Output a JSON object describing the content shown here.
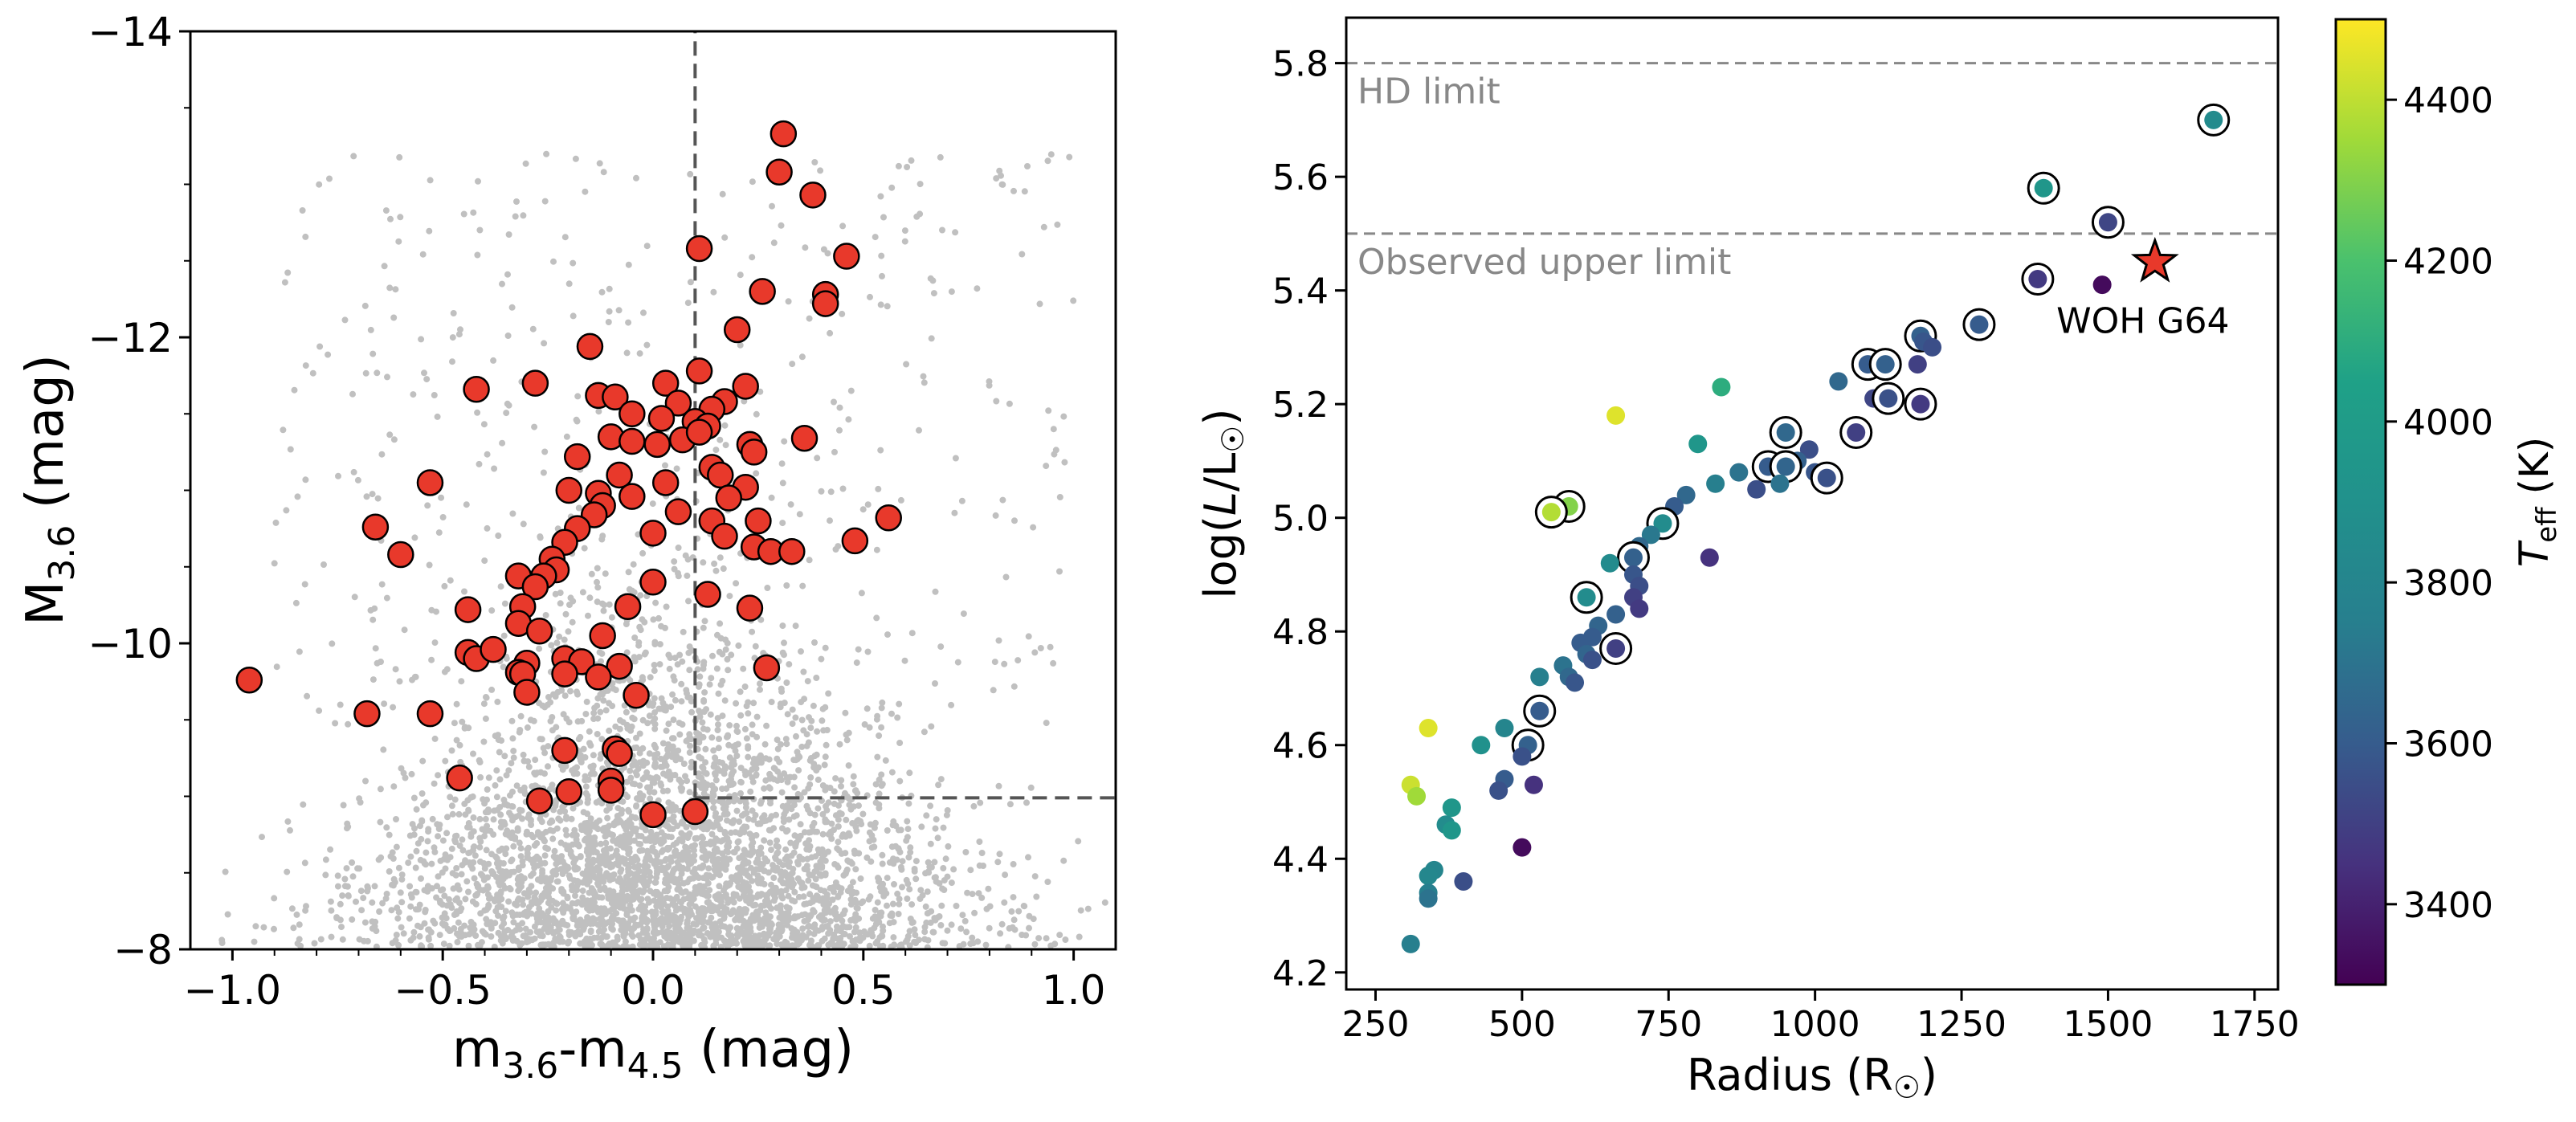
{
  "chart_data": [
    {
      "type": "scatter",
      "xlabel_main": "m",
      "xlabel_sub1": "3.6",
      "xlabel_mid": "-m",
      "xlabel_sub2": "4.5",
      "xlabel_tail": " (mag)",
      "ylabel_main": "M",
      "ylabel_sub": "3.6",
      "ylabel_tail": " (mag)",
      "xlim": [
        -1.1,
        1.1
      ],
      "ylim": [
        -8,
        -14
      ],
      "y_inverted": true,
      "xticks": [
        -1.0,
        -0.5,
        0.0,
        0.5,
        1.0
      ],
      "xtick_labels": [
        "−1.0",
        "−0.5",
        "0.0",
        "0.5",
        "1.0"
      ],
      "yticks": [
        -14,
        -12,
        -10,
        -8
      ],
      "ytick_labels": [
        "−14",
        "−12",
        "−10",
        "−8"
      ],
      "background_color": "#c0c0c0",
      "highlight_color": "#e8392b",
      "cut_lines": [
        {
          "style": "dashed",
          "x": [
            0.1,
            0.1
          ],
          "y": [
            -8.99,
            -14
          ]
        },
        {
          "style": "dashed",
          "x": [
            0.1,
            1.1
          ],
          "y": [
            -8.99,
            -8.99
          ]
        }
      ],
      "series": [
        {
          "role": "red-sources",
          "points": [
            [
              0.31,
              -13.33
            ],
            [
              0.3,
              -13.08
            ],
            [
              0.38,
              -12.93
            ],
            [
              0.11,
              -12.58
            ],
            [
              0.46,
              -12.53
            ],
            [
              0.26,
              -12.3
            ],
            [
              0.41,
              -12.28
            ],
            [
              0.41,
              -12.22
            ],
            [
              0.2,
              -12.05
            ],
            [
              -0.15,
              -11.94
            ],
            [
              0.11,
              -11.78
            ],
            [
              -0.28,
              -11.7
            ],
            [
              0.03,
              -11.7
            ],
            [
              -0.42,
              -11.66
            ],
            [
              0.22,
              -11.68
            ],
            [
              -0.13,
              -11.62
            ],
            [
              -0.09,
              -11.61
            ],
            [
              0.17,
              -11.58
            ],
            [
              0.06,
              -11.57
            ],
            [
              0.14,
              -11.53
            ],
            [
              -0.05,
              -11.5
            ],
            [
              0.02,
              -11.47
            ],
            [
              0.1,
              -11.45
            ],
            [
              0.13,
              -11.42
            ],
            [
              -0.1,
              -11.35
            ],
            [
              -0.05,
              -11.32
            ],
            [
              0.01,
              -11.3
            ],
            [
              0.07,
              -11.33
            ],
            [
              0.11,
              -11.38
            ],
            [
              0.23,
              -11.3
            ],
            [
              0.36,
              -11.34
            ],
            [
              -0.18,
              -11.22
            ],
            [
              0.24,
              -11.25
            ],
            [
              0.14,
              -11.15
            ],
            [
              0.16,
              -11.1
            ],
            [
              -0.08,
              -11.1
            ],
            [
              0.03,
              -11.05
            ],
            [
              -0.2,
              -11.0
            ],
            [
              -0.13,
              -10.98
            ],
            [
              0.22,
              -11.02
            ],
            [
              -0.05,
              -10.96
            ],
            [
              -0.12,
              -10.9
            ],
            [
              -0.53,
              -11.05
            ],
            [
              0.18,
              -10.95
            ],
            [
              -0.14,
              -10.84
            ],
            [
              0.06,
              -10.86
            ],
            [
              0.25,
              -10.8
            ],
            [
              -0.18,
              -10.75
            ],
            [
              0.0,
              -10.72
            ],
            [
              0.14,
              -10.8
            ],
            [
              0.17,
              -10.7
            ],
            [
              -0.21,
              -10.66
            ],
            [
              -0.66,
              -10.76
            ],
            [
              0.24,
              -10.63
            ],
            [
              0.28,
              -10.6
            ],
            [
              0.33,
              -10.6
            ],
            [
              0.48,
              -10.67
            ],
            [
              0.56,
              -10.82
            ],
            [
              -0.6,
              -10.58
            ],
            [
              -0.24,
              -10.55
            ],
            [
              -0.23,
              -10.48
            ],
            [
              -0.26,
              -10.44
            ],
            [
              -0.32,
              -10.44
            ],
            [
              0.0,
              -10.4
            ],
            [
              -0.28,
              -10.37
            ],
            [
              -0.06,
              -10.24
            ],
            [
              0.13,
              -10.32
            ],
            [
              0.23,
              -10.23
            ],
            [
              -0.31,
              -10.24
            ],
            [
              -0.32,
              -10.13
            ],
            [
              -0.27,
              -10.08
            ],
            [
              -0.12,
              -10.05
            ],
            [
              -0.44,
              -10.22
            ],
            [
              -0.44,
              -9.94
            ],
            [
              -0.42,
              -9.9
            ],
            [
              -0.38,
              -9.96
            ],
            [
              -0.3,
              -9.87
            ],
            [
              -0.21,
              -9.9
            ],
            [
              -0.17,
              -9.88
            ],
            [
              -0.32,
              -9.81
            ],
            [
              -0.21,
              -9.8
            ],
            [
              -0.31,
              -9.8
            ],
            [
              -0.08,
              -9.85
            ],
            [
              0.27,
              -9.84
            ],
            [
              -0.13,
              -9.78
            ],
            [
              -0.3,
              -9.68
            ],
            [
              -0.04,
              -9.66
            ],
            [
              -0.96,
              -9.76
            ],
            [
              -0.68,
              -9.54
            ],
            [
              -0.53,
              -9.54
            ],
            [
              -0.21,
              -9.3
            ],
            [
              -0.09,
              -9.31
            ],
            [
              -0.08,
              -9.28
            ],
            [
              -0.46,
              -9.12
            ],
            [
              -0.1,
              -9.1
            ],
            [
              -0.1,
              -9.04
            ],
            [
              -0.2,
              -9.03
            ],
            [
              -0.27,
              -8.97
            ],
            [
              0.0,
              -8.88
            ],
            [
              0.1,
              -8.9
            ]
          ]
        }
      ]
    },
    {
      "type": "scatter",
      "xlabel": "Radius (R",
      "xlabel_sym": "☉",
      "xlabel_close": ")",
      "ylabel_main": "log(",
      "ylabel_L": "L",
      "ylabel_slash": "/L",
      "ylabel_sub": "☉",
      "ylabel_close": ")",
      "xlim": [
        200,
        1790
      ],
      "ylim": [
        4.17,
        5.88
      ],
      "xticks": [
        250,
        500,
        750,
        1000,
        1250,
        1500,
        1750
      ],
      "xtick_labels": [
        "250",
        "500",
        "750",
        "1000",
        "1250",
        "1500",
        "1750"
      ],
      "yticks": [
        4.2,
        4.4,
        4.6,
        4.8,
        5.0,
        5.2,
        5.4,
        5.6,
        5.8
      ],
      "ytick_labels": [
        "4.2",
        "4.4",
        "4.6",
        "4.8",
        "5.0",
        "5.2",
        "5.4",
        "5.6",
        "5.8"
      ],
      "reference_lines": [
        {
          "y": 5.8,
          "label": "HD limit"
        },
        {
          "y": 5.5,
          "label": "Observed upper limit"
        }
      ],
      "annotation": {
        "text": "WOH G64",
        "radius": 1580,
        "logL": 5.45,
        "marker": "star",
        "color": "#e8392b"
      },
      "colorbar": {
        "label_main": "T",
        "label_sub": "eff",
        "label_tail": " (K)",
        "range": [
          3300,
          4500
        ],
        "ticks": [
          3400,
          3600,
          3800,
          4000,
          4200,
          4400
        ],
        "tick_labels": [
          "3400",
          "3600",
          "3800",
          "4000",
          "4200",
          "4400"
        ],
        "colormap": "viridis"
      },
      "columns": [
        "radius",
        "logL",
        "teff",
        "circled"
      ],
      "points": [
        [
          1680,
          5.7,
          3850,
          1
        ],
        [
          1390,
          5.58,
          3950,
          1
        ],
        [
          1500,
          5.52,
          3520,
          1
        ],
        [
          1380,
          5.42,
          3480,
          1
        ],
        [
          1490,
          5.41,
          3330,
          0
        ],
        [
          1180,
          5.32,
          3620,
          1
        ],
        [
          1185,
          5.31,
          3580,
          0
        ],
        [
          1175,
          5.27,
          3500,
          0
        ],
        [
          1200,
          5.3,
          3550,
          0
        ],
        [
          1280,
          5.34,
          3600,
          1
        ],
        [
          1090,
          5.27,
          3600,
          1
        ],
        [
          1120,
          5.27,
          3620,
          1
        ],
        [
          1040,
          5.24,
          3650,
          0
        ],
        [
          1100,
          5.21,
          3520,
          0
        ],
        [
          1125,
          5.21,
          3560,
          1
        ],
        [
          1180,
          5.2,
          3480,
          1
        ],
        [
          840,
          5.23,
          4100,
          0
        ],
        [
          660,
          5.18,
          4450,
          0
        ],
        [
          950,
          5.15,
          3650,
          1
        ],
        [
          1070,
          5.15,
          3500,
          1
        ],
        [
          800,
          5.13,
          3950,
          0
        ],
        [
          990,
          5.12,
          3550,
          0
        ],
        [
          970,
          5.1,
          3620,
          0
        ],
        [
          920,
          5.09,
          3600,
          1
        ],
        [
          950,
          5.09,
          3640,
          1
        ],
        [
          1000,
          5.08,
          3580,
          0
        ],
        [
          1020,
          5.07,
          3560,
          1
        ],
        [
          940,
          5.06,
          3700,
          0
        ],
        [
          830,
          5.06,
          3750,
          0
        ],
        [
          870,
          5.08,
          3700,
          0
        ],
        [
          900,
          5.05,
          3550,
          0
        ],
        [
          780,
          5.04,
          3650,
          0
        ],
        [
          760,
          5.02,
          3600,
          0
        ],
        [
          580,
          5.02,
          4300,
          1
        ],
        [
          550,
          5.01,
          4380,
          1
        ],
        [
          740,
          4.99,
          3860,
          1
        ],
        [
          720,
          4.97,
          3720,
          0
        ],
        [
          700,
          4.95,
          3650,
          0
        ],
        [
          690,
          4.93,
          3620,
          1
        ],
        [
          820,
          4.93,
          3450,
          0
        ],
        [
          650,
          4.92,
          3850,
          0
        ],
        [
          690,
          4.9,
          3580,
          0
        ],
        [
          700,
          4.88,
          3550,
          0
        ],
        [
          690,
          4.86,
          3500,
          0
        ],
        [
          610,
          4.86,
          3860,
          1
        ],
        [
          700,
          4.84,
          3480,
          0
        ],
        [
          660,
          4.83,
          3620,
          0
        ],
        [
          630,
          4.81,
          3640,
          0
        ],
        [
          620,
          4.79,
          3600,
          0
        ],
        [
          600,
          4.78,
          3600,
          0
        ],
        [
          610,
          4.76,
          3640,
          0
        ],
        [
          660,
          4.77,
          3500,
          1
        ],
        [
          620,
          4.75,
          3560,
          0
        ],
        [
          570,
          4.74,
          3700,
          0
        ],
        [
          580,
          4.72,
          3650,
          0
        ],
        [
          530,
          4.72,
          3760,
          0
        ],
        [
          590,
          4.71,
          3580,
          0
        ],
        [
          530,
          4.66,
          3600,
          1
        ],
        [
          470,
          4.63,
          3800,
          0
        ],
        [
          510,
          4.61,
          3640,
          0
        ],
        [
          430,
          4.6,
          3900,
          0
        ],
        [
          510,
          4.6,
          3620,
          1
        ],
        [
          500,
          4.58,
          3560,
          0
        ],
        [
          470,
          4.54,
          3600,
          0
        ],
        [
          460,
          4.52,
          3560,
          0
        ],
        [
          520,
          4.53,
          3450,
          0
        ],
        [
          340,
          4.63,
          4450,
          0
        ],
        [
          310,
          4.53,
          4420,
          0
        ],
        [
          320,
          4.51,
          4350,
          0
        ],
        [
          380,
          4.49,
          3950,
          0
        ],
        [
          370,
          4.46,
          3860,
          0
        ],
        [
          380,
          4.45,
          3950,
          0
        ],
        [
          500,
          4.42,
          3330,
          0
        ],
        [
          350,
          4.38,
          3800,
          0
        ],
        [
          340,
          4.37,
          3820,
          0
        ],
        [
          340,
          4.34,
          3750,
          0
        ],
        [
          400,
          4.36,
          3550,
          0
        ],
        [
          340,
          4.33,
          3700,
          0
        ],
        [
          310,
          4.25,
          3750,
          0
        ]
      ]
    }
  ]
}
